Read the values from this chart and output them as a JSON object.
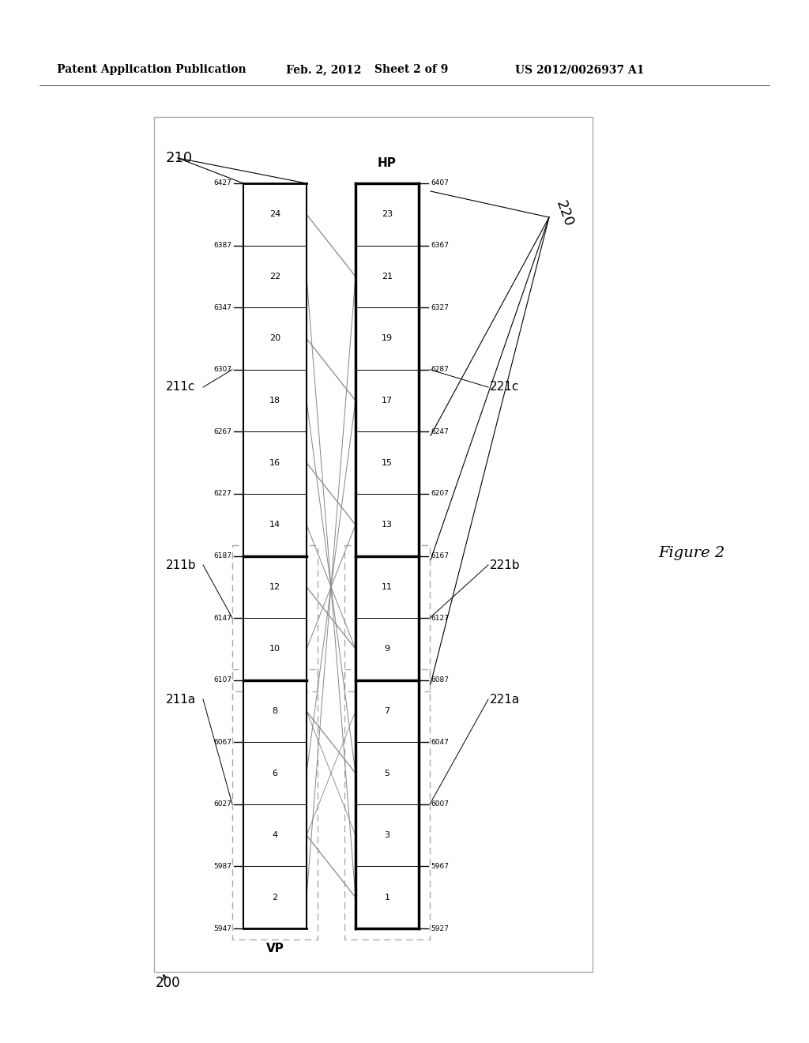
{
  "header_left": "Patent Application Publication",
  "header_date": "Feb. 2, 2012",
  "header_sheet": "Sheet 2 of 9",
  "header_patent": "US 2012/0026937 A1",
  "figure_label": "Figure 2",
  "label_200": "200",
  "label_210": "210",
  "label_220": "220",
  "label_211a": "211a",
  "label_211b": "211b",
  "label_211c": "211c",
  "label_221a": "221a",
  "label_221b": "221b",
  "label_221c": "221c",
  "vp_label": "VP",
  "hp_label": "HP",
  "vp_channels": [
    2,
    4,
    6,
    8,
    10,
    12,
    14,
    16,
    18,
    20,
    22,
    24
  ],
  "hp_channels": [
    1,
    3,
    5,
    7,
    9,
    11,
    13,
    15,
    17,
    19,
    21,
    23
  ],
  "vp_freqs": [
    5947,
    5987,
    6027,
    6067,
    6107,
    6147,
    6187,
    6227,
    6267,
    6307,
    6347,
    6387,
    6427
  ],
  "hp_freqs": [
    5927,
    5967,
    6007,
    6047,
    6087,
    6127,
    6167,
    6207,
    6247,
    6287,
    6327,
    6367,
    6407
  ],
  "bg_color": "#ffffff",
  "outer_box_color": "#aaaaaa",
  "strip_color": "#000000",
  "dashed_color": "#aaaaaa",
  "line_color": "#666666"
}
